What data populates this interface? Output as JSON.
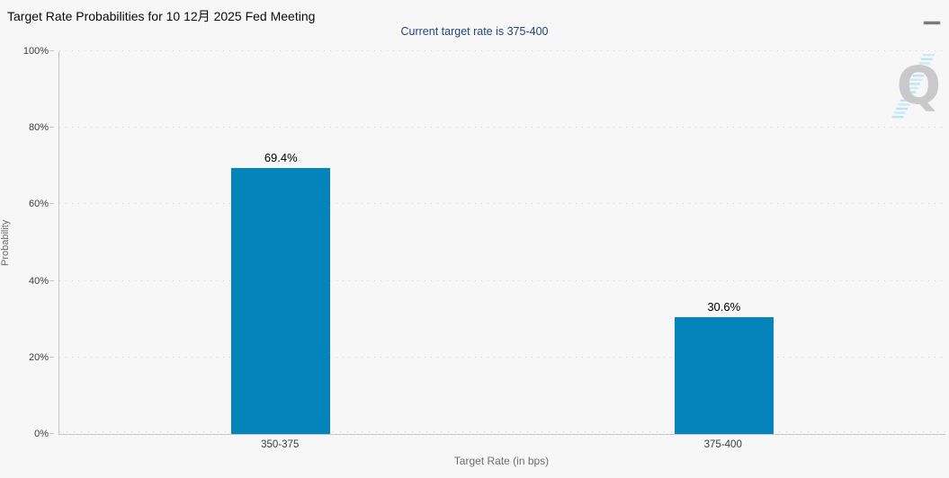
{
  "header": {
    "menu_icon": "hamburger-icon"
  },
  "watermark": {
    "letter": "Q",
    "stripe_color": "#b9e3f4",
    "letter_color": "#c9c9c9"
  },
  "colors": {
    "background": "#f7f7f7",
    "bar": "#0583bb",
    "subtitle_text": "#23477b",
    "axis_line": "#c6c6c6",
    "grid_dots": "#d6d6d6"
  },
  "chart_data": {
    "type": "bar",
    "title": "Target Rate Probabilities for 10 12月 2025 Fed Meeting",
    "subtitle": "Current target rate is 375-400",
    "categories": [
      "350-375",
      "375-400"
    ],
    "values": [
      69.4,
      30.6
    ],
    "value_labels": [
      "69.4%",
      "30.6%"
    ],
    "xlabel": "Target Rate (in bps)",
    "ylabel": "Probability",
    "ylim": [
      0,
      100
    ],
    "ytick_step": 20,
    "ytick_labels": [
      "0%",
      "20%",
      "40%",
      "60%",
      "80%",
      "100%"
    ],
    "grid": "dotted-horizontal",
    "legend": "none",
    "bar_color": "#0583bb"
  }
}
